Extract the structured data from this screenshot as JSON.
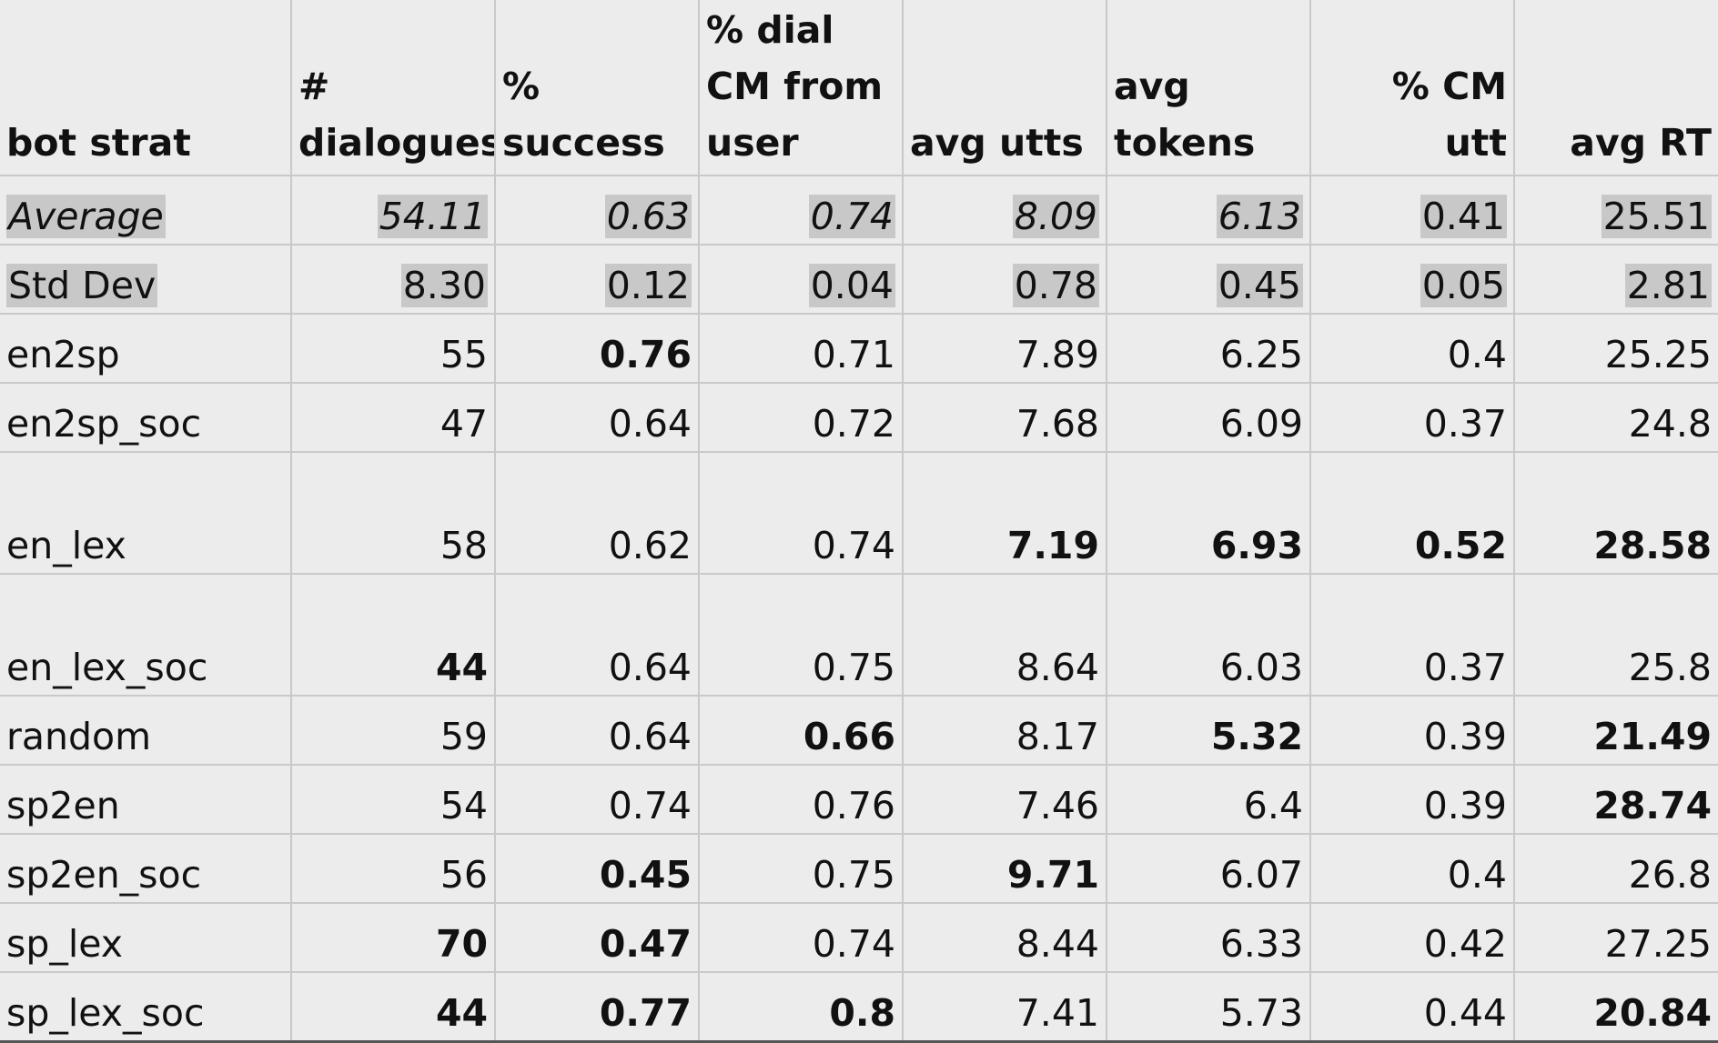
{
  "table": {
    "columns": [
      [
        "bot strat"
      ],
      [
        "#",
        "dialogues"
      ],
      [
        "%",
        "success"
      ],
      [
        "% dial",
        "CM from",
        "user"
      ],
      [
        "avg utts"
      ],
      [
        "avg",
        "tokens"
      ],
      [
        "% CM utt"
      ],
      [
        "avg RT"
      ]
    ],
    "summary_rows": [
      {
        "label": "Average",
        "values": [
          "54.11",
          "0.63",
          "0.74",
          "8.09",
          "6.13",
          "0.41",
          "25.51"
        ]
      },
      {
        "label": "Std Dev",
        "values": [
          "8.30",
          "0.12",
          "0.04",
          "0.78",
          "0.45",
          "0.05",
          "2.81"
        ]
      }
    ],
    "rows": [
      {
        "label": "en2sp",
        "values": [
          "55",
          "0.76",
          "0.71",
          "7.89",
          "6.25",
          "0.4",
          "25.25"
        ],
        "bold": [
          false,
          true,
          false,
          false,
          false,
          false,
          false
        ]
      },
      {
        "label": "en2sp_soc",
        "values": [
          "47",
          "0.64",
          "0.72",
          "7.68",
          "6.09",
          "0.37",
          "24.8"
        ],
        "bold": [
          false,
          false,
          false,
          false,
          false,
          false,
          false
        ]
      },
      {
        "label": "en_lex",
        "values": [
          "58",
          "0.62",
          "0.74",
          "7.19",
          "6.93",
          "0.52",
          "28.58"
        ],
        "bold": [
          false,
          false,
          false,
          true,
          true,
          true,
          true
        ]
      },
      {
        "label": "en_lex_soc",
        "values": [
          "44",
          "0.64",
          "0.75",
          "8.64",
          "6.03",
          "0.37",
          "25.8"
        ],
        "bold": [
          true,
          false,
          false,
          false,
          false,
          false,
          false
        ]
      },
      {
        "label": "random",
        "values": [
          "59",
          "0.64",
          "0.66",
          "8.17",
          "5.32",
          "0.39",
          "21.49"
        ],
        "bold": [
          false,
          false,
          true,
          false,
          true,
          false,
          true
        ]
      },
      {
        "label": "sp2en",
        "values": [
          "54",
          "0.74",
          "0.76",
          "7.46",
          "6.4",
          "0.39",
          "28.74"
        ],
        "bold": [
          false,
          false,
          false,
          false,
          false,
          false,
          true
        ]
      },
      {
        "label": "sp2en_soc",
        "values": [
          "56",
          "0.45",
          "0.75",
          "9.71",
          "6.07",
          "0.4",
          "26.8"
        ],
        "bold": [
          false,
          true,
          false,
          true,
          false,
          false,
          false
        ]
      },
      {
        "label": "sp_lex",
        "values": [
          "70",
          "0.47",
          "0.74",
          "8.44",
          "6.33",
          "0.42",
          "27.25"
        ],
        "bold": [
          true,
          true,
          false,
          false,
          false,
          false,
          false
        ]
      },
      {
        "label": "sp_lex_soc",
        "values": [
          "44",
          "0.77",
          "0.8",
          "7.41",
          "5.73",
          "0.44",
          "20.84"
        ],
        "bold": [
          true,
          true,
          true,
          false,
          false,
          false,
          true
        ]
      }
    ]
  },
  "colors": {
    "background": "#ececec",
    "gridline": "#c9c9c9",
    "highlight": "#c8c8c8"
  }
}
